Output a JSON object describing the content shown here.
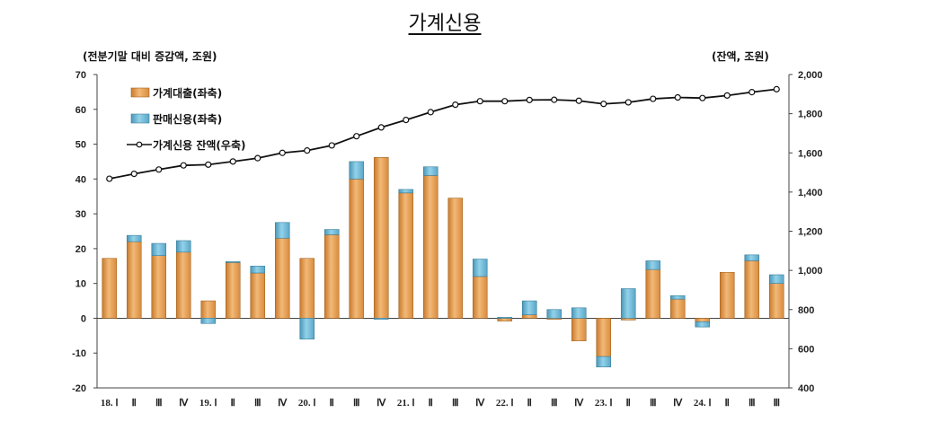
{
  "chart_data": {
    "type": "bar",
    "title": "가계신용",
    "ylabel_left": "(전분기말 대비 증감액, 조원)",
    "ylabel_right": "(잔액, 조원)",
    "ylim_left": [
      -20,
      70
    ],
    "ylim_right": [
      400,
      2000
    ],
    "yticks_left": [
      "70",
      "60",
      "50",
      "40",
      "30",
      "20",
      "10",
      "0",
      "-10",
      "-20"
    ],
    "yticks_right": [
      "2,000",
      "1,800",
      "1,600",
      "1,400",
      "1,200",
      "1,000",
      "800",
      "600",
      "400"
    ],
    "categories": [
      "18. Ⅰ",
      "Ⅱ",
      "Ⅲ",
      "Ⅳ",
      "19. Ⅰ",
      "Ⅱ",
      "Ⅲ",
      "Ⅳ",
      "20. Ⅰ",
      "Ⅱ",
      "Ⅲ",
      "Ⅳ",
      "21. Ⅰ",
      "Ⅱ",
      "Ⅲ",
      "Ⅳ",
      "22. Ⅰ",
      "Ⅱ",
      "Ⅲ",
      "Ⅳ",
      "23. Ⅰ",
      "Ⅱ",
      "Ⅲ",
      "Ⅳ",
      "24. Ⅰ",
      "Ⅱ",
      "Ⅲ",
      "Ⅲ"
    ],
    "series": [
      {
        "name": "가계대출(좌축)",
        "type": "stacked-bar",
        "color": "#e8a15a",
        "values": [
          17.2,
          22.0,
          18.0,
          19.0,
          5.0,
          16.0,
          13.0,
          23.0,
          17.2,
          24.0,
          40.0,
          46.2,
          36.0,
          41.0,
          34.5,
          12.0,
          -0.8,
          1.0,
          -0.3,
          -6.5,
          -11.0,
          -0.5,
          14.0,
          5.5,
          -1.0,
          13.2,
          16.5,
          10.0
        ]
      },
      {
        "name": "판매신용(좌축)",
        "type": "stacked-bar",
        "color": "#6fb9d6",
        "values": [
          0.0,
          1.8,
          3.5,
          3.3,
          -1.5,
          0.3,
          2.0,
          4.5,
          -6.0,
          1.5,
          5.0,
          -0.3,
          1.0,
          2.5,
          0.0,
          5.0,
          0.3,
          4.0,
          2.5,
          3.0,
          -3.0,
          8.5,
          2.5,
          1.0,
          -1.5,
          0.0,
          1.7,
          2.5
        ]
      },
      {
        "name": "가계신용 잔액(우축)",
        "type": "line",
        "axis": "right",
        "color": "#111111",
        "values": [
          1468,
          1493,
          1515,
          1536,
          1540,
          1556,
          1573,
          1600,
          1612,
          1638,
          1685,
          1730,
          1768,
          1808,
          1846,
          1864,
          1864,
          1870,
          1871,
          1866,
          1850,
          1858,
          1876,
          1883,
          1880,
          1893,
          1910,
          1925
        ]
      }
    ],
    "legend": "top-left",
    "grid": false
  }
}
